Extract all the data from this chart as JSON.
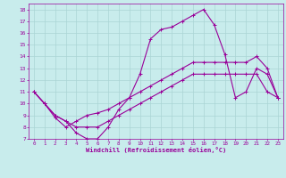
{
  "xlabel": "Windchill (Refroidissement éolien,°C)",
  "bg_color": "#c8ecec",
  "grid_color": "#aad4d4",
  "line_color": "#990099",
  "xlim": [
    -0.5,
    23.5
  ],
  "ylim": [
    7,
    18.5
  ],
  "xticks": [
    0,
    1,
    2,
    3,
    4,
    5,
    6,
    7,
    8,
    9,
    10,
    11,
    12,
    13,
    14,
    15,
    16,
    17,
    18,
    19,
    20,
    21,
    22,
    23
  ],
  "yticks": [
    7,
    8,
    9,
    10,
    11,
    12,
    13,
    14,
    15,
    16,
    17,
    18
  ],
  "line1_x": [
    0,
    1,
    2,
    3,
    4,
    5,
    6,
    7,
    8,
    9,
    10,
    11,
    12,
    13,
    14,
    15,
    16,
    17,
    18,
    19,
    20,
    21,
    22,
    23
  ],
  "line1_y": [
    11,
    10,
    9,
    8.5,
    7.5,
    7,
    7,
    8,
    9.5,
    10.5,
    12.5,
    15.5,
    16.3,
    16.5,
    17,
    17.5,
    18,
    16.7,
    14.2,
    10.5,
    11,
    13,
    12.5,
    10.5
  ],
  "line2_x": [
    0,
    1,
    2,
    3,
    4,
    5,
    6,
    7,
    8,
    9,
    10,
    11,
    12,
    13,
    14,
    15,
    16,
    17,
    18,
    19,
    20,
    21,
    22,
    23
  ],
  "line2_y": [
    11,
    10,
    8.8,
    8,
    8.5,
    9,
    9.2,
    9.5,
    10,
    10.5,
    11,
    11.5,
    12,
    12.5,
    13,
    13.5,
    13.5,
    13.5,
    13.5,
    13.5,
    13.5,
    14,
    13,
    10.5
  ],
  "line3_x": [
    0,
    1,
    2,
    3,
    4,
    5,
    6,
    7,
    8,
    9,
    10,
    11,
    12,
    13,
    14,
    15,
    16,
    17,
    18,
    19,
    20,
    21,
    22,
    23
  ],
  "line3_y": [
    11,
    10,
    9,
    8.5,
    8,
    8,
    8,
    8.5,
    9,
    9.5,
    10,
    10.5,
    11,
    11.5,
    12,
    12.5,
    12.5,
    12.5,
    12.5,
    12.5,
    12.5,
    12.5,
    11,
    10.5
  ]
}
